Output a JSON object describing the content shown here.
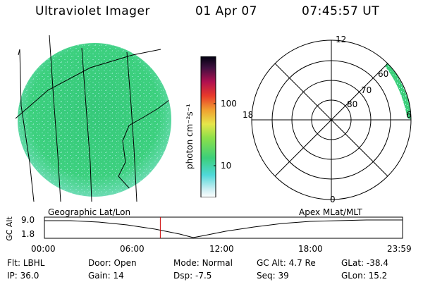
{
  "header": {
    "instrument": "Ultraviolet Imager",
    "date": "01 Apr 07",
    "time": "07:45:57 UT"
  },
  "colorbar": {
    "unit_label": "photon cm⁻²s⁻¹",
    "ticks": [
      "100",
      "10"
    ]
  },
  "polar_plot": {
    "mlt_labels": {
      "top": "12",
      "left": "18",
      "right": "6",
      "bottom": "0"
    },
    "mlat_labels": [
      "60",
      "70",
      "80"
    ]
  },
  "timeline": {
    "ylabel": "GC Alt",
    "yticks": [
      "9.0",
      "1.8"
    ],
    "left_caption": "Geographic Lat/Lon",
    "right_caption": "Apex MLat/MLT",
    "xticks": [
      "00:00",
      "06:00",
      "12:00",
      "18:00",
      "23:59"
    ],
    "current_time_hours": 7.766
  },
  "status": {
    "row1": [
      {
        "label": "Flt:",
        "value": "LBHL"
      },
      {
        "label": "Door:",
        "value": "Open"
      },
      {
        "label": "Mode:",
        "value": "Normal"
      },
      {
        "label": "GC Alt:",
        "value": "4.7 Re"
      },
      {
        "label": "GLat:",
        "value": "-38.4"
      }
    ],
    "row2": [
      {
        "label": "IP:",
        "value": "36.0"
      },
      {
        "label": "Gain:",
        "value": "14"
      },
      {
        "label": "Dsp:",
        "value": "-7.5"
      },
      {
        "label": "Seq:",
        "value": "39"
      },
      {
        "label": "GLon:",
        "value": "15.2"
      }
    ]
  },
  "colors": {
    "emission_green": "#3ccf7a",
    "emission_cyan": "#8fe8e8",
    "marker_red": "#cc0000"
  }
}
